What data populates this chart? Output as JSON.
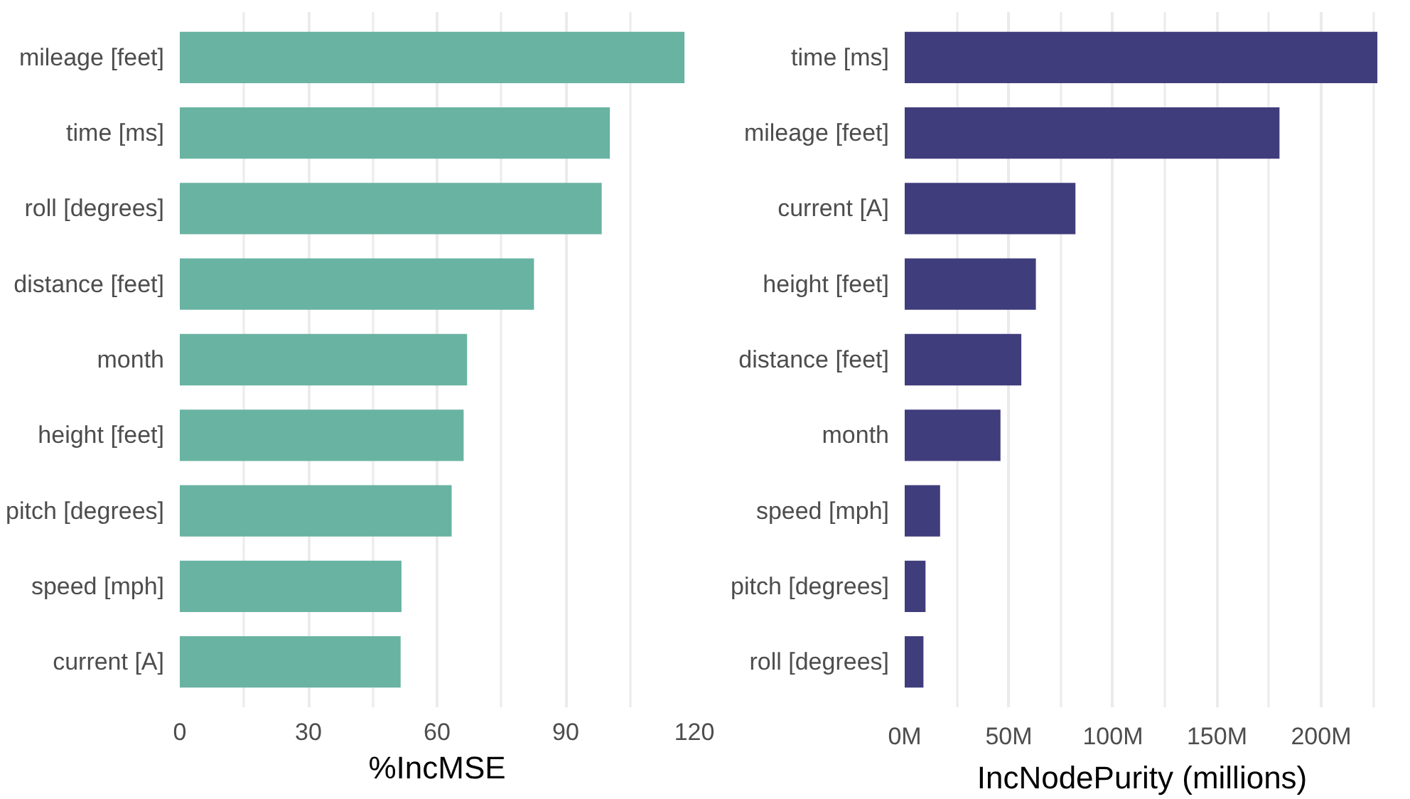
{
  "chart_data": [
    {
      "type": "bar",
      "orientation": "horizontal",
      "xlabel": "%IncMSE",
      "categories": [
        "mileage [feet]",
        "time [ms]",
        "roll [degrees]",
        "distance [feet]",
        "month",
        "height [feet]",
        "pitch [degrees]",
        "speed [mph]",
        "current [A]"
      ],
      "values": [
        117.7,
        100.3,
        98.4,
        82.6,
        67,
        66.2,
        63.4,
        51.7,
        51.5
      ],
      "color": "#69b3a2",
      "xlim": [
        0,
        120
      ],
      "xticks": [
        0,
        {
          "value": 15,
          "label": null
        },
        30,
        {
          "value": 45,
          "label": null
        },
        60,
        {
          "value": 75,
          "label": null
        },
        90,
        {
          "value": 105,
          "label": null
        },
        120
      ],
      "grid": "x"
    },
    {
      "type": "bar",
      "orientation": "horizontal",
      "xlabel": "IncNodePurity (millions)",
      "categories": [
        "time [ms]",
        "mileage [feet]",
        "current [A]",
        "height [feet]",
        "distance [feet]",
        "month",
        "speed [mph]",
        "pitch [degrees]",
        "roll [degrees]"
      ],
      "values": [
        227,
        180,
        82,
        63,
        56,
        46,
        17,
        10,
        9
      ],
      "color": "#403d7c",
      "xlim": [
        0,
        228
      ],
      "xticks": [
        {
          "value": 0,
          "label": "0M"
        },
        {
          "value": 25,
          "label": null
        },
        {
          "value": 50,
          "label": "50M"
        },
        {
          "value": 75,
          "label": null
        },
        {
          "value": 100,
          "label": "100M"
        },
        {
          "value": 125,
          "label": null
        },
        {
          "value": 150,
          "label": "150M"
        },
        {
          "value": 175,
          "label": null
        },
        {
          "value": 200,
          "label": "200M"
        },
        {
          "value": 225,
          "label": null
        }
      ],
      "grid": "x"
    }
  ]
}
